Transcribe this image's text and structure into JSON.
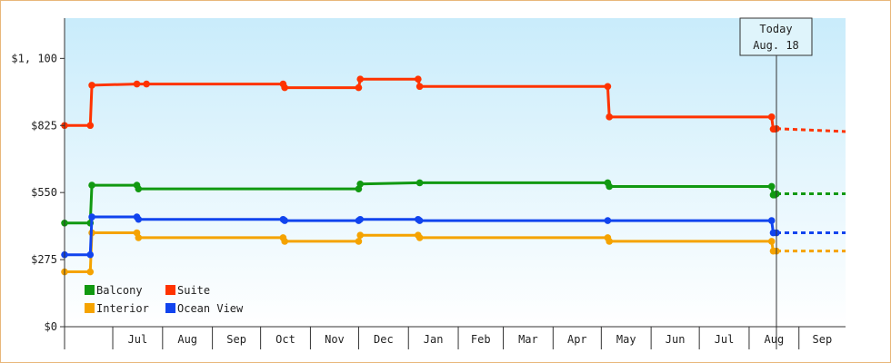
{
  "chart_data": {
    "type": "line",
    "title": "",
    "xlabel": "",
    "ylabel": "",
    "ylim": [
      0,
      1265
    ],
    "y_ticks": [
      "$0",
      "$275",
      "$550",
      "$825",
      "$1, 100"
    ],
    "y_tick_values": [
      0,
      275,
      550,
      825,
      1100
    ],
    "x_start": "2024-06-01",
    "x_end": "2025-09-30",
    "months": [
      {
        "label": "Jul",
        "start": "2024-07-01"
      },
      {
        "label": "Aug",
        "start": "2024-08-01"
      },
      {
        "label": "Sep",
        "start": "2024-09-01"
      },
      {
        "label": "Oct",
        "start": "2024-10-01"
      },
      {
        "label": "Nov",
        "start": "2024-11-01"
      },
      {
        "label": "Dec",
        "start": "2024-12-01"
      },
      {
        "label": "Jan",
        "start": "2025-01-01"
      },
      {
        "label": "Feb",
        "start": "2025-02-01"
      },
      {
        "label": "Mar",
        "start": "2025-03-01"
      },
      {
        "label": "Apr",
        "start": "2025-04-01"
      },
      {
        "label": "May",
        "start": "2025-05-01"
      },
      {
        "label": "Jun",
        "start": "2025-06-01"
      },
      {
        "label": "Jul",
        "start": "2025-07-01"
      },
      {
        "label": "Aug",
        "start": "2025-08-01"
      },
      {
        "label": "Sep",
        "start": "2025-09-01"
      }
    ],
    "today": {
      "line1": "Today",
      "line2": "Aug. 18",
      "date": "2025-08-18"
    },
    "projection_end": "2025-09-30",
    "legend_position": "bottom-left",
    "grid": false,
    "background": "gradient light-blue",
    "series": [
      {
        "name": "Suite",
        "color": "#ff3300",
        "points": [
          [
            "2024-06-01",
            825
          ],
          [
            "2024-06-17",
            825
          ],
          [
            "2024-06-18",
            990
          ],
          [
            "2024-07-16",
            995
          ],
          [
            "2024-07-22",
            995
          ],
          [
            "2024-10-15",
            995
          ],
          [
            "2024-10-16",
            980
          ],
          [
            "2024-12-01",
            980
          ],
          [
            "2024-12-02",
            1015
          ],
          [
            "2025-01-07",
            1015
          ],
          [
            "2025-01-08",
            985
          ],
          [
            "2025-05-05",
            985
          ],
          [
            "2025-05-06",
            860
          ],
          [
            "2025-08-15",
            860
          ],
          [
            "2025-08-16",
            810
          ],
          [
            "2025-08-17",
            810
          ],
          [
            "2025-08-18",
            812
          ]
        ],
        "projection": 800
      },
      {
        "name": "Balcony",
        "color": "#119911",
        "points": [
          [
            "2024-06-01",
            425
          ],
          [
            "2024-06-17",
            425
          ],
          [
            "2024-06-18",
            580
          ],
          [
            "2024-07-16",
            580
          ],
          [
            "2024-07-17",
            565
          ],
          [
            "2024-12-01",
            565
          ],
          [
            "2024-12-02",
            585
          ],
          [
            "2025-01-08",
            590
          ],
          [
            "2025-05-05",
            590
          ],
          [
            "2025-05-06",
            575
          ],
          [
            "2025-08-15",
            575
          ],
          [
            "2025-08-16",
            540
          ],
          [
            "2025-08-17",
            540
          ],
          [
            "2025-08-18",
            545
          ]
        ],
        "projection": 545
      },
      {
        "name": "Interior",
        "color": "#f5a300",
        "points": [
          [
            "2024-06-01",
            225
          ],
          [
            "2024-06-17",
            225
          ],
          [
            "2024-06-18",
            385
          ],
          [
            "2024-07-16",
            385
          ],
          [
            "2024-07-17",
            365
          ],
          [
            "2024-10-15",
            365
          ],
          [
            "2024-10-16",
            350
          ],
          [
            "2024-12-01",
            350
          ],
          [
            "2024-12-02",
            375
          ],
          [
            "2025-01-07",
            375
          ],
          [
            "2025-01-08",
            365
          ],
          [
            "2025-05-05",
            365
          ],
          [
            "2025-05-06",
            350
          ],
          [
            "2025-08-15",
            350
          ],
          [
            "2025-08-16",
            310
          ],
          [
            "2025-08-18",
            310
          ]
        ],
        "projection": 310
      },
      {
        "name": "Ocean View",
        "color": "#1144ee",
        "points": [
          [
            "2024-06-01",
            295
          ],
          [
            "2024-06-17",
            295
          ],
          [
            "2024-06-18",
            450
          ],
          [
            "2024-07-16",
            450
          ],
          [
            "2024-07-17",
            440
          ],
          [
            "2024-10-15",
            440
          ],
          [
            "2024-10-16",
            435
          ],
          [
            "2024-12-01",
            435
          ],
          [
            "2024-12-02",
            440
          ],
          [
            "2025-01-07",
            440
          ],
          [
            "2025-01-08",
            435
          ],
          [
            "2025-05-05",
            435
          ],
          [
            "2025-08-15",
            435
          ],
          [
            "2025-08-16",
            385
          ],
          [
            "2025-08-18",
            385
          ]
        ],
        "projection": 385
      }
    ],
    "legend": [
      {
        "name": "Balcony",
        "color": "#119911"
      },
      {
        "name": "Suite",
        "color": "#ff3300"
      },
      {
        "name": "Interior",
        "color": "#f5a300"
      },
      {
        "name": "Ocean View",
        "color": "#1144ee"
      }
    ]
  }
}
